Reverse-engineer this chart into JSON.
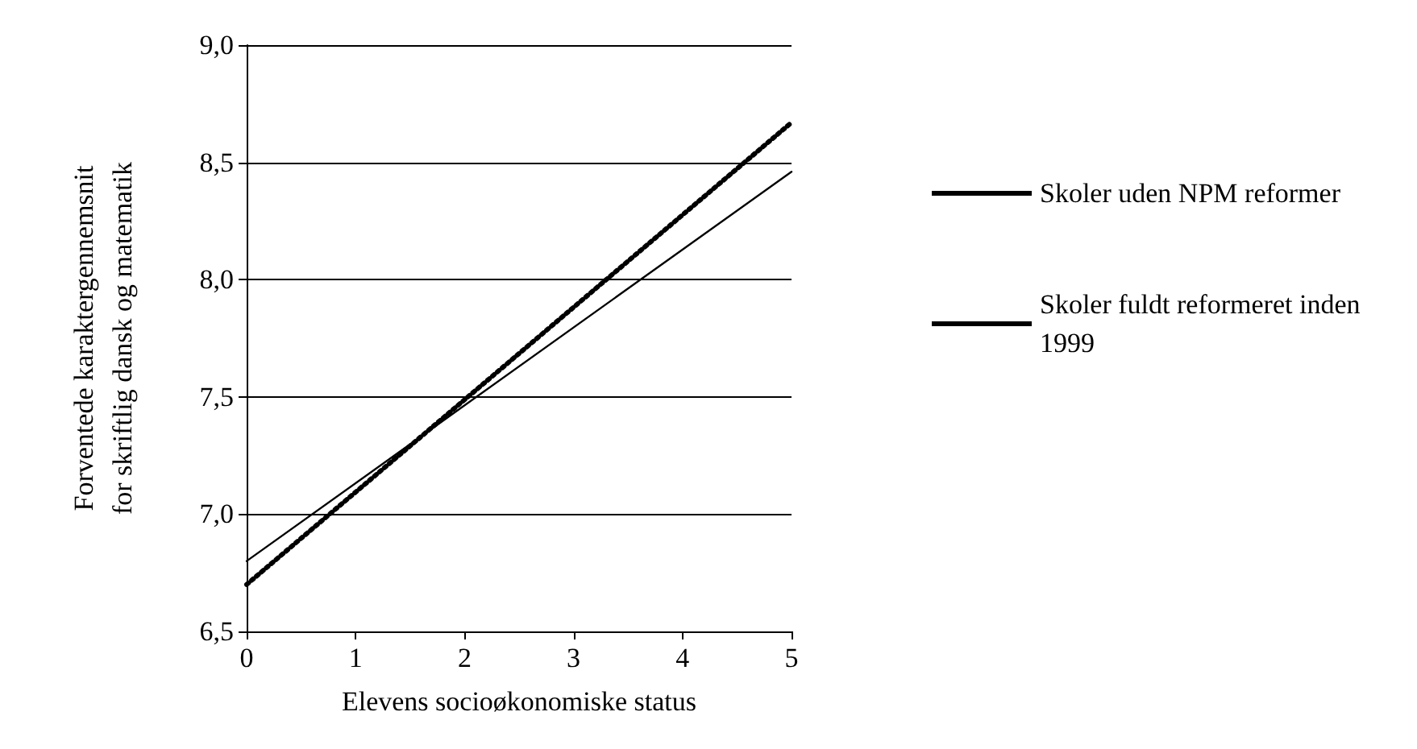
{
  "chart_data": {
    "type": "line",
    "xlabel": "Elevens socioøkonomiske status",
    "ylabel": "Forventede karaktergennemsnit\nfor skriftlig dansk og matematik",
    "x": [
      0,
      5
    ],
    "series": [
      {
        "name": "Skoler uden NPM reformer",
        "color": "#000000",
        "values": [
          6.8,
          8.46
        ],
        "line_style": "solid"
      },
      {
        "name": "Skoler fuldt reformeret inden 1999",
        "color": "#000000",
        "values": [
          6.7,
          8.67
        ],
        "line_style": "dotted"
      }
    ],
    "xlim": [
      0,
      5
    ],
    "xticks": [
      0,
      1,
      2,
      3,
      4,
      5
    ],
    "ylim": [
      6.5,
      9
    ],
    "yticks": [
      {
        "value": 6.5,
        "label": "6,5"
      },
      {
        "value": 7,
        "label": "7,0"
      },
      {
        "value": 7.5,
        "label": "7,5"
      },
      {
        "value": 8,
        "label": "8,0"
      },
      {
        "value": 8.5,
        "label": "8,5"
      },
      {
        "value": 9,
        "label": "9,0"
      }
    ],
    "grid": "y",
    "legend": "right",
    "marker": "none"
  }
}
